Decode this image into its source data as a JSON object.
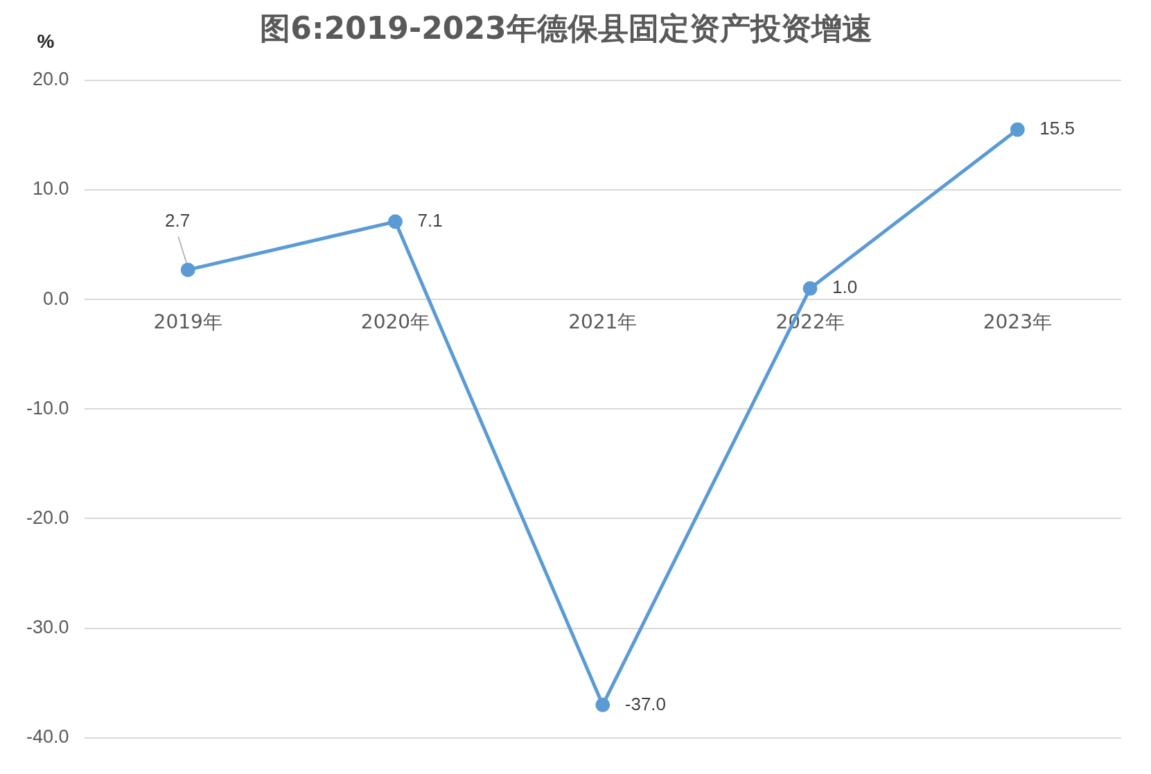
{
  "chart_data": {
    "type": "line",
    "title": "图6:2019-2023年德保县固定资产投资增速",
    "ylabel": "%",
    "categories": [
      "2019年",
      "2020年",
      "2021年",
      "2022年",
      "2023年"
    ],
    "series": [
      {
        "color": "#5b9bd5",
        "values": [
          2.7,
          7.1,
          -37.0,
          1.0,
          15.5
        ],
        "value_labels": [
          "2.7",
          "7.1",
          "-37.0",
          "1.0",
          "15.5"
        ]
      }
    ],
    "ylim": [
      -40,
      20
    ],
    "yticks": [
      {
        "value": -40,
        "label": "-40.0"
      },
      {
        "value": -30,
        "label": "-30.0"
      },
      {
        "value": -20,
        "label": "-20.0"
      },
      {
        "value": -10,
        "label": "-10.0"
      },
      {
        "value": 0,
        "label": "0.0"
      },
      {
        "value": 10,
        "label": "10.0"
      },
      {
        "value": 20,
        "label": "20.0"
      }
    ],
    "grid": "y",
    "legend": false,
    "marker": "circle",
    "line_style": "solid"
  }
}
